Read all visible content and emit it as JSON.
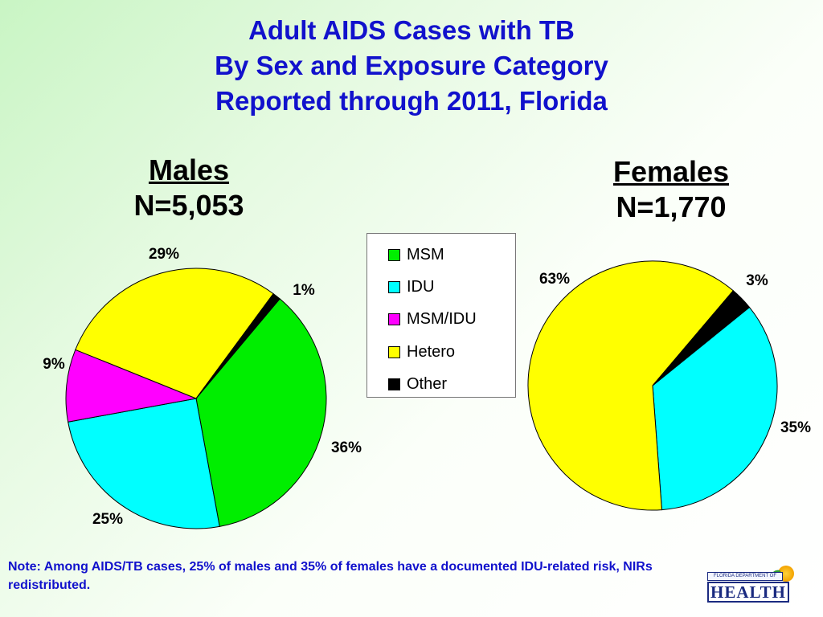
{
  "title_lines": [
    "Adult AIDS Cases with TB",
    "By Sex and Exposure Category",
    "Reported through 2011, Florida"
  ],
  "legend": [
    {
      "label": "MSM",
      "color": "#00ee00"
    },
    {
      "label": "IDU",
      "color": "#00ffff"
    },
    {
      "label": "MSM/IDU",
      "color": "#ff00ff"
    },
    {
      "label": "Hetero",
      "color": "#ffff00"
    },
    {
      "label": "Other",
      "color": "#000000"
    }
  ],
  "chart_data": [
    {
      "type": "pie",
      "title": "Males",
      "subtitle": "N=5,053",
      "categories": [
        "MSM",
        "IDU",
        "MSM/IDU",
        "Hetero",
        "Other"
      ],
      "values": [
        36,
        25,
        9,
        29,
        1
      ],
      "labels": [
        "36%",
        "25%",
        "9%",
        "29%",
        "1%"
      ]
    },
    {
      "type": "pie",
      "title": "Females",
      "subtitle": "N=1,770",
      "categories": [
        "IDU",
        "Hetero",
        "Other"
      ],
      "values": [
        35,
        63,
        3
      ],
      "labels": [
        "35%",
        "63%",
        "3%"
      ]
    }
  ],
  "note": "Note: Among AIDS/TB cases, 25% of males and 35% of females have a documented IDU-related risk,    NIRs redistributed.",
  "logo": {
    "top_text": "FLORIDA DEPARTMENT OF",
    "main_text": "HEALTH"
  }
}
